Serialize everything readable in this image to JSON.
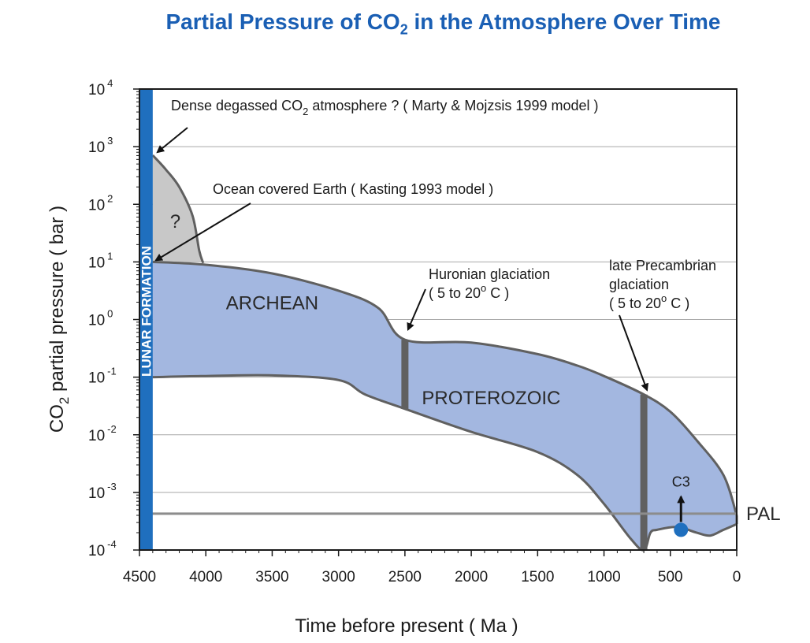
{
  "title": {
    "prefix": "Partial Pressure of CO",
    "sub": "2",
    "suffix": " in the Atmosphere Over Time"
  },
  "chart_data": {
    "type": "area",
    "title": "Partial Pressure of CO2 in the Atmosphere Over Time",
    "xlabel": "Time before present ( Ma )",
    "ylabel": {
      "prefix": "CO",
      "sub": "2",
      "suffix": " partial pressure ( bar )"
    },
    "x_reversed": true,
    "xlim": [
      4500,
      0
    ],
    "y_log_range": [
      -4,
      4
    ],
    "x_ticks": [
      4500,
      4000,
      3500,
      3000,
      2500,
      2000,
      1500,
      1000,
      500,
      0
    ],
    "y_ticks": [
      {
        "base": "10",
        "exp": "4",
        "value": 4
      },
      {
        "base": "10",
        "exp": "3",
        "value": 3
      },
      {
        "base": "10",
        "exp": "2",
        "value": 2
      },
      {
        "base": "10",
        "exp": "1",
        "value": 1
      },
      {
        "base": "10",
        "exp": "0",
        "value": 0
      },
      {
        "base": "10",
        "exp": "-1",
        "value": -1
      },
      {
        "base": "10",
        "exp": "-2",
        "value": -2
      },
      {
        "base": "10",
        "exp": "-3",
        "value": -3
      },
      {
        "base": "10",
        "exp": "-4",
        "value": -4
      }
    ],
    "gray_region": {
      "label": "?",
      "boundary": [
        [
          4400,
          1
        ],
        [
          4400,
          2.85
        ],
        [
          4300,
          2.6
        ],
        [
          4200,
          2.3
        ],
        [
          4100,
          1.8
        ],
        [
          4050,
          1.2
        ],
        [
          4020,
          0.98
        ]
      ]
    },
    "blue_region": {
      "upper": [
        [
          4400,
          1
        ],
        [
          4000,
          0.95
        ],
        [
          3500,
          0.8
        ],
        [
          3000,
          0.5
        ],
        [
          2700,
          0.2
        ],
        [
          2500,
          -0.35
        ],
        [
          2000,
          -0.4
        ],
        [
          1500,
          -0.6
        ],
        [
          1200,
          -0.8
        ],
        [
          1000,
          -0.98
        ],
        [
          700,
          -1.3
        ],
        [
          500,
          -1.6
        ],
        [
          300,
          -2.1
        ],
        [
          100,
          -2.7
        ],
        [
          0,
          -3.4
        ]
      ],
      "lower": [
        [
          4400,
          -1
        ],
        [
          4000,
          -0.98
        ],
        [
          3500,
          -0.97
        ],
        [
          3000,
          -1.05
        ],
        [
          2800,
          -1.3
        ],
        [
          2500,
          -1.55
        ],
        [
          2000,
          -1.95
        ],
        [
          1500,
          -2.3
        ],
        [
          1200,
          -2.7
        ],
        [
          1000,
          -3.2
        ],
        [
          800,
          -3.8
        ],
        [
          700,
          -4.0
        ],
        [
          650,
          -3.7
        ],
        [
          600,
          -3.65
        ],
        [
          450,
          -3.6
        ],
        [
          300,
          -3.7
        ],
        [
          200,
          -3.75
        ],
        [
          100,
          -3.65
        ],
        [
          0,
          -3.55
        ]
      ]
    },
    "eras": [
      {
        "label": "ARCHEAN",
        "x": 3500,
        "y": 0.3
      },
      {
        "label": "PROTEROZOIC",
        "x": 1850,
        "y": -1.35
      }
    ],
    "glaciations": [
      {
        "x": 2500,
        "y_top": -0.35,
        "y_bottom": -1.55
      },
      {
        "x": 700,
        "y_top": -1.3,
        "y_bottom": -4.0
      }
    ],
    "lunar_formation": {
      "label": "LUNAR FORMATION",
      "x_from": 4500,
      "x_to": 4400
    },
    "pal": {
      "label": "PAL",
      "y": -3.37
    },
    "c3": {
      "label": "C3",
      "x": 420,
      "y": -3.65
    },
    "annotations": [
      {
        "lines": [
          {
            "prefix": "Dense degassed CO",
            "sub": "2",
            "suffix": " atmosphere ? ( Marty & Mojzsis 1999 model )"
          }
        ],
        "target": [
          4400,
          2.85
        ]
      },
      {
        "lines": [
          {
            "prefix": "Ocean covered Earth ( Kasting 1993 model )",
            "sub": "",
            "suffix": ""
          }
        ],
        "target": [
          4400,
          1
        ]
      },
      {
        "lines": [
          {
            "prefix": "Huronian glaciation",
            "sub": "",
            "suffix": ""
          },
          {
            "prefix": "( 5 to 20",
            "sup": "o",
            "suffix": " C )"
          }
        ],
        "target": [
          2500,
          -0.2
        ]
      },
      {
        "lines": [
          {
            "prefix": "late Precambrian",
            "sub": "",
            "suffix": ""
          },
          {
            "prefix": "glaciation",
            "sub": "",
            "suffix": ""
          },
          {
            "prefix": "( 5 to 20",
            "sup": "o",
            "suffix": " C )"
          }
        ],
        "target": [
          700,
          -1.25
        ]
      }
    ]
  },
  "colors": {
    "title": "#1a5fb4",
    "blue_fill": "#a3b7e0",
    "gray_fill": "#c8c8c8",
    "outline": "#606060",
    "lunar_bar": "#1f6fbe",
    "c3_dot": "#1f6fbe",
    "grid": "#a8a8a8"
  }
}
